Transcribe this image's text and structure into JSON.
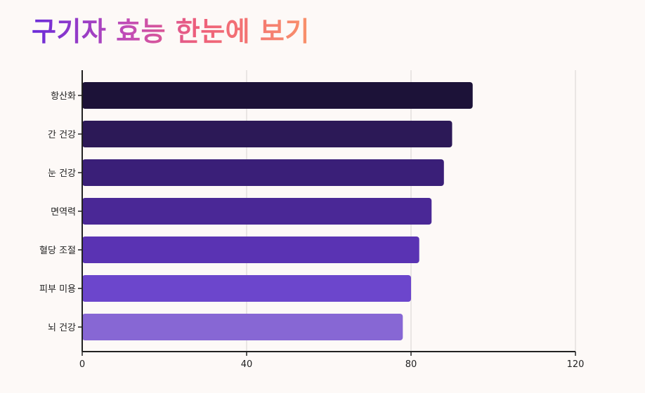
{
  "chart_data": {
    "type": "bar",
    "orientation": "horizontal",
    "title": "구기자 효능 한눈에 보기",
    "categories": [
      "항산화",
      "간 건강",
      "눈 건강",
      "면역력",
      "혈당 조절",
      "피부 미용",
      "뇌 건강"
    ],
    "values": [
      95,
      90,
      88,
      85,
      82,
      80,
      78
    ],
    "xlim": [
      0,
      120
    ],
    "xticks": [
      0,
      40,
      80,
      120
    ],
    "grid": "vertical",
    "colors": [
      "#1c1238",
      "#2c1957",
      "#3a1f78",
      "#4a2896",
      "#5a33b3",
      "#6c46cc",
      "#8767d4"
    ]
  }
}
